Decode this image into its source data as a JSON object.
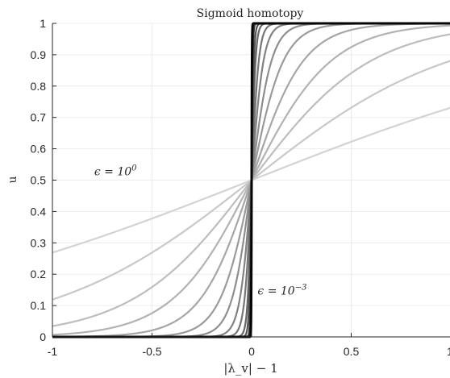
{
  "chart_data": {
    "type": "line",
    "title": "Sigmoid homotopy",
    "xlabel": "|λ_v| − 1",
    "ylabel": "u",
    "xlim": [
      -1,
      1
    ],
    "ylim": [
      0,
      1
    ],
    "xticks": [
      "-1",
      "-0.5",
      "0",
      "0.5",
      "1"
    ],
    "yticks": [
      "0",
      "0.1",
      "0.2",
      "0.3",
      "0.4",
      "0.5",
      "0.6",
      "0.7",
      "0.8",
      "0.9",
      "1"
    ],
    "grid": true,
    "function": "u = 1 / (1 + exp(-x / epsilon))",
    "series": [
      {
        "epsilon": 1.0,
        "color": "#d3d3d3"
      },
      {
        "epsilon": 0.5,
        "color": "#c8c8c8"
      },
      {
        "epsilon": 0.3,
        "color": "#bdbdbd"
      },
      {
        "epsilon": 0.2,
        "color": "#b2b2b2"
      },
      {
        "epsilon": 0.13,
        "color": "#a6a6a6"
      },
      {
        "epsilon": 0.08,
        "color": "#9a9a9a"
      },
      {
        "epsilon": 0.05,
        "color": "#8e8e8e"
      },
      {
        "epsilon": 0.03,
        "color": "#828282"
      },
      {
        "epsilon": 0.018,
        "color": "#767676"
      },
      {
        "epsilon": 0.01,
        "color": "#686868"
      },
      {
        "epsilon": 0.006,
        "color": "#555555"
      },
      {
        "epsilon": 0.003,
        "color": "#3a3a3a"
      },
      {
        "epsilon": 0.001,
        "color": "#050505"
      }
    ],
    "annotations": [
      {
        "text_base": "ϵ = 10",
        "text_exp": "0",
        "x": -0.79,
        "y": 0.515
      },
      {
        "text_base": "ϵ = 10",
        "text_exp": "−3",
        "x": 0.03,
        "y": 0.135
      }
    ]
  }
}
